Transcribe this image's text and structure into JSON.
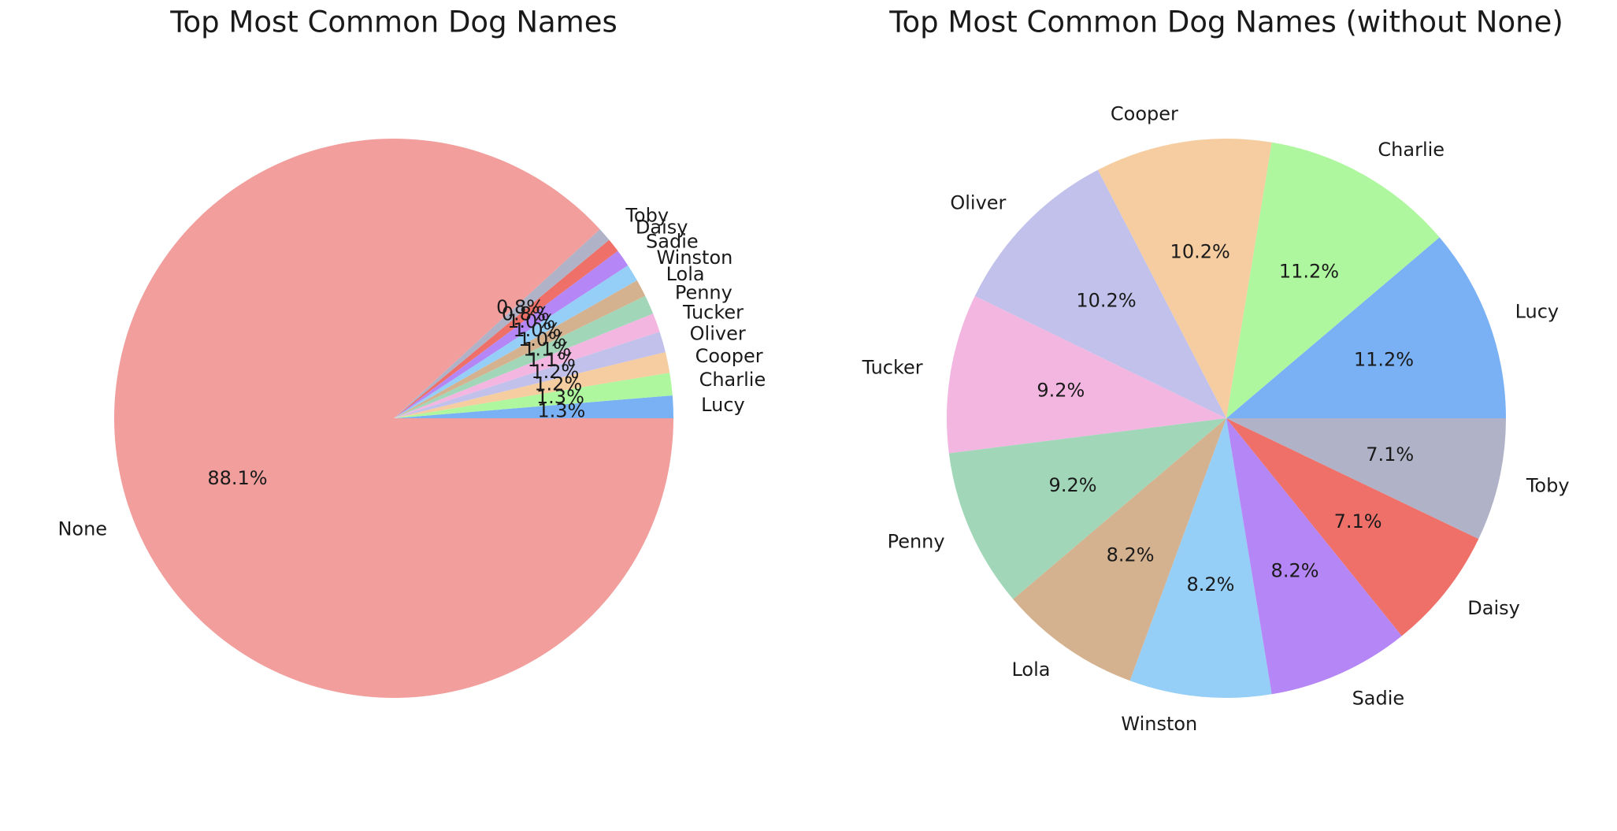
{
  "chart_data": [
    {
      "type": "pie",
      "title": "Top Most Common Dog Names",
      "labels": [
        "Lucy",
        "Charlie",
        "Cooper",
        "Oliver",
        "Tucker",
        "Penny",
        "Lola",
        "Winston",
        "Sadie",
        "Daisy",
        "Toby",
        "None"
      ],
      "values": [
        1.3,
        1.3,
        1.2,
        1.2,
        1.1,
        1.1,
        1.0,
        1.0,
        1.0,
        0.8,
        0.8,
        88.1
      ],
      "pct_labels": [
        "1.3%",
        "1.3%",
        "1.2%",
        "1.2%",
        "1.1%",
        "1.1%",
        "1.0%",
        "1.0%",
        "1.0%",
        "0.8%",
        "0.8%",
        "88.1%"
      ],
      "colors": [
        "#7ab1f5",
        "#aef79e",
        "#f5cda0",
        "#c1c1eb",
        "#f2b6e1",
        "#a1d7b8",
        "#d4b290",
        "#95cef6",
        "#b586f5",
        "#ee7069",
        "#b0b2c7",
        "#f19e9c"
      ],
      "start_angle_deg": 0,
      "direction": "counterclockwise"
    },
    {
      "type": "pie",
      "title": "Top Most Common Dog Names (without None)",
      "labels": [
        "Lucy",
        "Charlie",
        "Cooper",
        "Oliver",
        "Tucker",
        "Penny",
        "Lola",
        "Winston",
        "Sadie",
        "Daisy",
        "Toby"
      ],
      "values": [
        11.2,
        11.2,
        10.2,
        10.2,
        9.2,
        9.2,
        8.2,
        8.2,
        8.2,
        7.1,
        7.1
      ],
      "pct_labels": [
        "11.2%",
        "11.2%",
        "10.2%",
        "10.2%",
        "9.2%",
        "9.2%",
        "8.2%",
        "8.2%",
        "8.2%",
        "7.1%",
        "7.1%"
      ],
      "colors": [
        "#7ab1f5",
        "#aef79e",
        "#f5cda0",
        "#c1c1eb",
        "#f2b6e1",
        "#a1d7b8",
        "#d4b290",
        "#95cef6",
        "#b586f5",
        "#ee7069",
        "#b0b2c7"
      ],
      "start_angle_deg": 0,
      "direction": "counterclockwise"
    }
  ]
}
